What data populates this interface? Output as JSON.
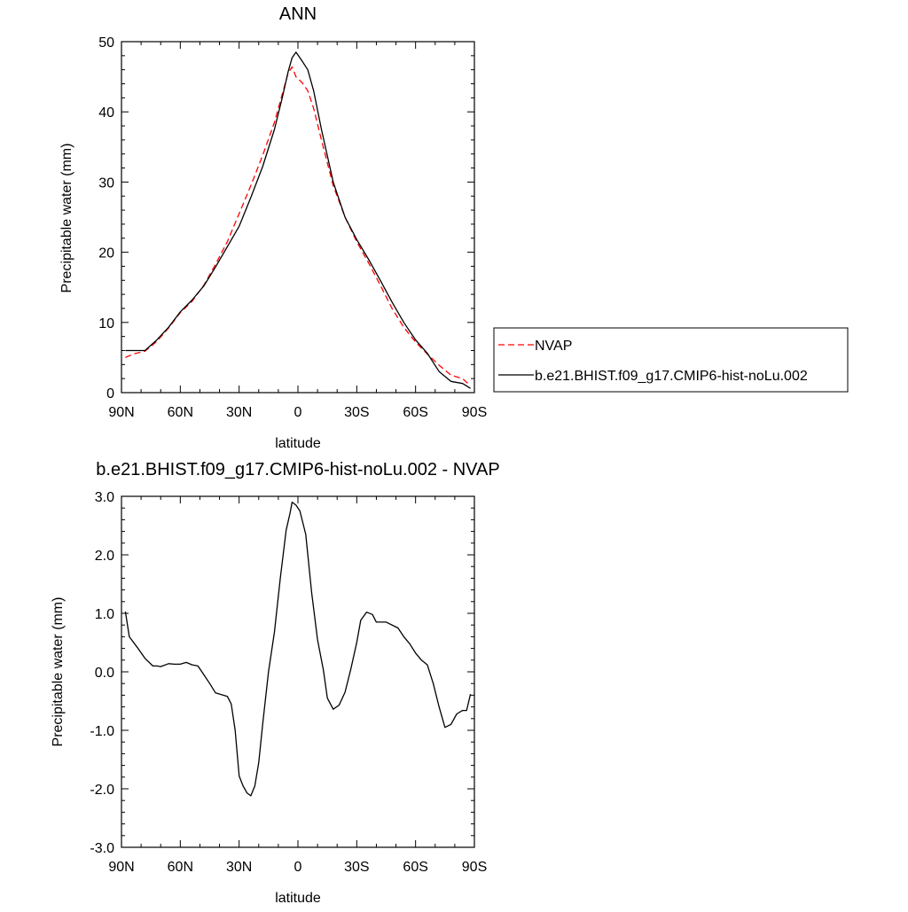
{
  "chart_data": [
    {
      "type": "line",
      "title": "ANN",
      "xlabel": "latitude",
      "ylabel": "Precipitable water (mm)",
      "xlim": [
        90,
        -90
      ],
      "ylim": [
        0,
        50
      ],
      "x_tick_values": [
        90,
        60,
        30,
        0,
        -30,
        -60,
        -90
      ],
      "x_tick_labels": [
        "90N",
        "60N",
        "30N",
        "0",
        "30S",
        "60S",
        "90S"
      ],
      "y_tick_values": [
        0,
        10,
        20,
        30,
        40,
        50
      ],
      "y_tick_labels": [
        "0",
        "10",
        "20",
        "30",
        "40",
        "50"
      ],
      "legend_position": "right",
      "series": [
        {
          "name": "NVAP",
          "color": "#ff0000",
          "style": "dashed",
          "points": [
            [
              88,
              5.0
            ],
            [
              84,
              5.5
            ],
            [
              78,
              5.9
            ],
            [
              72,
              7.3
            ],
            [
              66,
              9.2
            ],
            [
              60,
              11.4
            ],
            [
              54,
              13.0
            ],
            [
              48,
              15.3
            ],
            [
              42,
              18.3
            ],
            [
              36,
              21.5
            ],
            [
              30,
              25.5
            ],
            [
              24,
              29.5
            ],
            [
              18,
              33.8
            ],
            [
              12,
              38.5
            ],
            [
              8,
              42.5
            ],
            [
              5,
              45.5
            ],
            [
              3,
              46.4
            ],
            [
              1,
              45.0
            ],
            [
              -2,
              44.2
            ],
            [
              -5,
              43.0
            ],
            [
              -8,
              40.5
            ],
            [
              -12,
              36.0
            ],
            [
              -18,
              29.5
            ],
            [
              -24,
              25.0
            ],
            [
              -30,
              21.5
            ],
            [
              -36,
              18.5
            ],
            [
              -42,
              15.3
            ],
            [
              -48,
              12.0
            ],
            [
              -54,
              9.3
            ],
            [
              -60,
              7.2
            ],
            [
              -66,
              5.5
            ],
            [
              -72,
              3.9
            ],
            [
              -78,
              2.5
            ],
            [
              -84,
              2.0
            ],
            [
              -88,
              1.0
            ]
          ]
        },
        {
          "name": "b.e21.BHIST.f09_g17.CMIP6-hist-noLu.002",
          "color": "#000000",
          "style": "solid",
          "points": [
            [
              88,
              6.0
            ],
            [
              84,
              6.0
            ],
            [
              78,
              6.0
            ],
            [
              72,
              7.5
            ],
            [
              66,
              9.3
            ],
            [
              60,
              11.5
            ],
            [
              54,
              13.2
            ],
            [
              48,
              15.2
            ],
            [
              42,
              17.9
            ],
            [
              36,
              20.8
            ],
            [
              30,
              23.7
            ],
            [
              24,
              27.8
            ],
            [
              18,
              32.2
            ],
            [
              12,
              37.5
            ],
            [
              8,
              42.0
            ],
            [
              5,
              45.7
            ],
            [
              3,
              47.7
            ],
            [
              1,
              48.5
            ],
            [
              -2,
              47.3
            ],
            [
              -5,
              46.0
            ],
            [
              -8,
              43.0
            ],
            [
              -12,
              37.5
            ],
            [
              -18,
              30.0
            ],
            [
              -24,
              25.0
            ],
            [
              -30,
              21.8
            ],
            [
              -36,
              19.0
            ],
            [
              -42,
              16.0
            ],
            [
              -48,
              12.9
            ],
            [
              -54,
              10.0
            ],
            [
              -60,
              7.5
            ],
            [
              -66,
              5.6
            ],
            [
              -72,
              3.0
            ],
            [
              -78,
              1.6
            ],
            [
              -84,
              1.3
            ],
            [
              -88,
              0.6
            ]
          ]
        }
      ]
    },
    {
      "type": "line",
      "title": "b.e21.BHIST.f09_g17.CMIP6-hist-noLu.002 - NVAP",
      "xlabel": "latitude",
      "ylabel": "Precipitable water (mm)",
      "xlim": [
        90,
        -90
      ],
      "ylim": [
        -3,
        3
      ],
      "x_tick_values": [
        90,
        60,
        30,
        0,
        -30,
        -60,
        -90
      ],
      "x_tick_labels": [
        "90N",
        "60N",
        "30N",
        "0",
        "30S",
        "60S",
        "90S"
      ],
      "y_tick_values": [
        3,
        2,
        1,
        0,
        -1,
        -2,
        -3
      ],
      "y_tick_labels": [
        "3.0",
        "2.0",
        "1.0",
        "0.0",
        "-1.0",
        "-2.0",
        "-3.0"
      ],
      "series": [
        {
          "color": "#000000",
          "style": "solid",
          "points": [
            [
              88,
              1.03
            ],
            [
              86,
              0.6
            ],
            [
              82,
              0.42
            ],
            [
              78,
              0.23
            ],
            [
              74,
              0.1
            ],
            [
              72,
              0.1
            ],
            [
              70,
              0.09
            ],
            [
              66,
              0.14
            ],
            [
              63,
              0.13
            ],
            [
              60,
              0.13
            ],
            [
              57,
              0.16
            ],
            [
              54,
              0.12
            ],
            [
              51,
              0.1
            ],
            [
              48,
              -0.05
            ],
            [
              45,
              -0.2
            ],
            [
              42,
              -0.36
            ],
            [
              40,
              -0.38
            ],
            [
              36,
              -0.42
            ],
            [
              34,
              -0.55
            ],
            [
              32,
              -1.0
            ],
            [
              30,
              -1.78
            ],
            [
              28,
              -1.95
            ],
            [
              26,
              -2.07
            ],
            [
              24,
              -2.12
            ],
            [
              22,
              -1.95
            ],
            [
              20,
              -1.55
            ],
            [
              18,
              -0.9
            ],
            [
              15,
              0.0
            ],
            [
              12,
              0.68
            ],
            [
              9,
              1.6
            ],
            [
              6,
              2.42
            ],
            [
              4,
              2.72
            ],
            [
              3,
              2.9
            ],
            [
              1,
              2.85
            ],
            [
              -1,
              2.75
            ],
            [
              -4,
              2.35
            ],
            [
              -7,
              1.35
            ],
            [
              -10,
              0.55
            ],
            [
              -13,
              0.03
            ],
            [
              -15,
              -0.45
            ],
            [
              -18,
              -0.64
            ],
            [
              -21,
              -0.57
            ],
            [
              -24,
              -0.35
            ],
            [
              -27,
              0.05
            ],
            [
              -30,
              0.5
            ],
            [
              -32,
              0.88
            ],
            [
              -35,
              1.02
            ],
            [
              -38,
              0.98
            ],
            [
              -40,
              0.85
            ],
            [
              -45,
              0.85
            ],
            [
              -51,
              0.75
            ],
            [
              -54,
              0.6
            ],
            [
              -57,
              0.48
            ],
            [
              -60,
              0.32
            ],
            [
              -63,
              0.2
            ],
            [
              -66,
              0.12
            ],
            [
              -69,
              -0.2
            ],
            [
              -72,
              -0.6
            ],
            [
              -75,
              -0.95
            ],
            [
              -78,
              -0.9
            ],
            [
              -81,
              -0.72
            ],
            [
              -84,
              -0.66
            ],
            [
              -86,
              -0.66
            ],
            [
              -88,
              -0.38
            ]
          ]
        }
      ]
    }
  ]
}
